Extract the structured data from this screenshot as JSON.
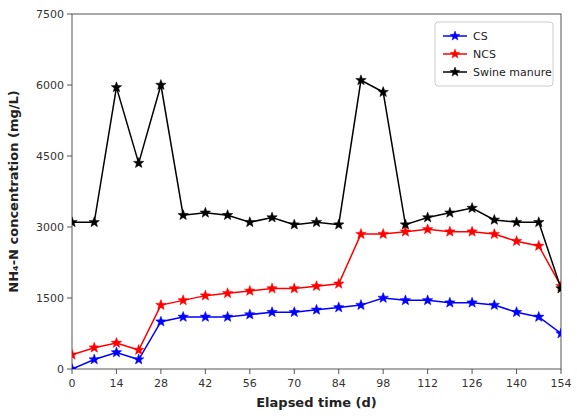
{
  "chart_data": {
    "type": "line",
    "xlabel": "Elapsed time (d)",
    "ylabel": "NH₄-N concentration (mg/L)",
    "x": [
      0,
      7,
      14,
      21,
      28,
      35,
      42,
      49,
      56,
      63,
      70,
      77,
      84,
      91,
      98,
      105,
      112,
      119,
      126,
      133,
      140,
      147,
      154
    ],
    "series": [
      {
        "name": "CS",
        "color": "#0000ff",
        "marker": "star",
        "values": [
          0,
          200,
          350,
          200,
          1000,
          1100,
          1100,
          1100,
          1150,
          1200,
          1200,
          1250,
          1300,
          1350,
          1500,
          1450,
          1450,
          1400,
          1400,
          1350,
          1200,
          1100,
          750
        ]
      },
      {
        "name": "NCS",
        "color": "#ff0000",
        "marker": "star",
        "values": [
          300,
          450,
          550,
          400,
          1350,
          1450,
          1550,
          1600,
          1650,
          1700,
          1700,
          1750,
          1800,
          2850,
          2850,
          2900,
          2950,
          2900,
          2900,
          2850,
          2700,
          2600,
          1750
        ]
      },
      {
        "name": "Swine manure",
        "color": "#000000",
        "marker": "star",
        "values": [
          3100,
          3100,
          5950,
          4350,
          6000,
          3250,
          3300,
          3250,
          3100,
          3200,
          3050,
          3100,
          3050,
          6100,
          5850,
          3050,
          3200,
          3300,
          3400,
          3150,
          3100,
          3100,
          1700
        ]
      }
    ],
    "xlim": [
      0,
      154
    ],
    "ylim": [
      0,
      7500
    ],
    "xticks": [
      0,
      14,
      28,
      42,
      56,
      70,
      84,
      98,
      112,
      126,
      140,
      154
    ],
    "yticks": [
      0,
      1500,
      3000,
      4500,
      6000,
      7500
    ],
    "grid": false,
    "legend": "upper right"
  }
}
